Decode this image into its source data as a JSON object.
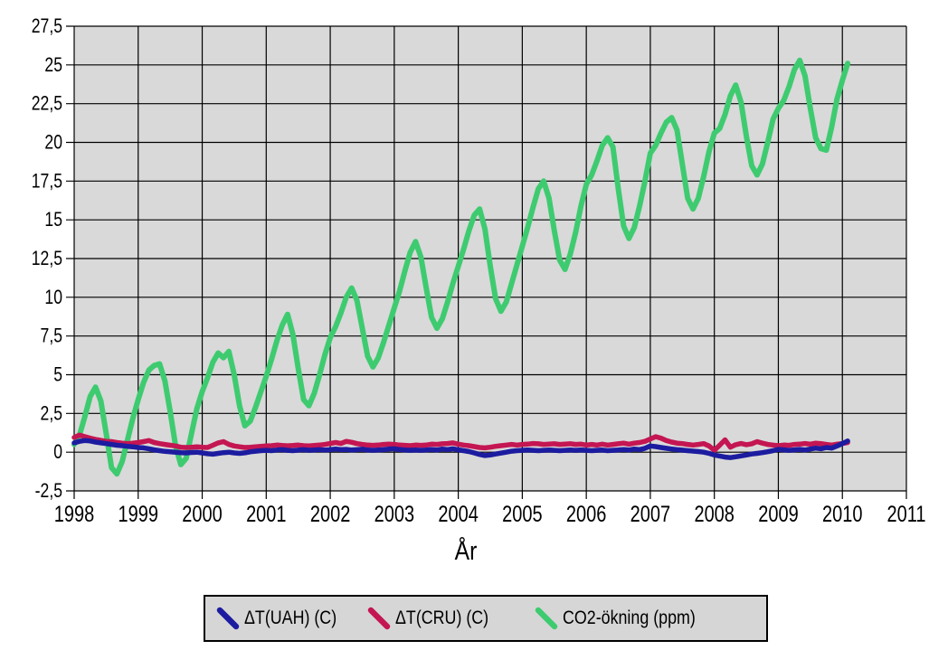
{
  "chart_data": {
    "type": "line",
    "title": "",
    "xlabel": "År",
    "ylabel": "",
    "xlim": [
      1998,
      2011
    ],
    "ylim": [
      -2.5,
      27.5
    ],
    "grid": true,
    "plot_bg": "#d9d9d9",
    "grid_color": "#000000",
    "legend_position": "bottom",
    "x_ticks": [
      1998,
      1999,
      2000,
      2001,
      2002,
      2003,
      2004,
      2005,
      2006,
      2007,
      2008,
      2009,
      2010,
      2011
    ],
    "x_tick_labels": [
      "1998",
      "1999",
      "2000",
      "2001",
      "2002",
      "2003",
      "2004",
      "2005",
      "2006",
      "2007",
      "2008",
      "2009",
      "2010",
      "2011"
    ],
    "y_ticks": [
      -2.5,
      0,
      2.5,
      5,
      7.5,
      10,
      12.5,
      15,
      17.5,
      20,
      22.5,
      25,
      27.5
    ],
    "y_tick_labels": [
      "-2,5",
      "0",
      "2,5",
      "5",
      "7,5",
      "10",
      "12,5",
      "15",
      "17,5",
      "20",
      "22,5",
      "25",
      "27,5"
    ],
    "x_start": 1998,
    "x_step": 0.0833333,
    "series": [
      {
        "name": "ΔT(UAH) (C)",
        "color": "#1c1ca0",
        "width": 5.5,
        "values": [
          0.6,
          0.7,
          0.75,
          0.72,
          0.65,
          0.6,
          0.55,
          0.5,
          0.45,
          0.42,
          0.38,
          0.35,
          0.3,
          0.28,
          0.22,
          0.15,
          0.1,
          0.05,
          0.02,
          0.0,
          -0.03,
          -0.05,
          -0.02,
          0.0,
          -0.05,
          -0.1,
          -0.13,
          -0.08,
          -0.03,
          0.0,
          -0.05,
          -0.08,
          -0.04,
          0.02,
          0.06,
          0.1,
          0.12,
          0.1,
          0.14,
          0.16,
          0.12,
          0.1,
          0.13,
          0.16,
          0.12,
          0.14,
          0.16,
          0.13,
          0.16,
          0.2,
          0.16,
          0.18,
          0.14,
          0.16,
          0.19,
          0.14,
          0.12,
          0.14,
          0.16,
          0.2,
          0.22,
          0.17,
          0.14,
          0.12,
          0.14,
          0.12,
          0.14,
          0.17,
          0.14,
          0.2,
          0.17,
          0.22,
          0.15,
          0.1,
          0.04,
          -0.05,
          -0.15,
          -0.22,
          -0.18,
          -0.12,
          -0.06,
          0.0,
          0.06,
          0.1,
          0.12,
          0.14,
          0.12,
          0.1,
          0.12,
          0.14,
          0.12,
          0.1,
          0.12,
          0.14,
          0.12,
          0.14,
          0.12,
          0.1,
          0.12,
          0.14,
          0.1,
          0.12,
          0.14,
          0.17,
          0.14,
          0.2,
          0.17,
          0.25,
          0.4,
          0.36,
          0.3,
          0.25,
          0.2,
          0.16,
          0.13,
          0.1,
          0.07,
          0.04,
          0.0,
          -0.08,
          -0.18,
          -0.25,
          -0.32,
          -0.35,
          -0.3,
          -0.24,
          -0.18,
          -0.12,
          -0.08,
          -0.03,
          0.03,
          0.1,
          0.18,
          0.15,
          0.12,
          0.15,
          0.18,
          0.14,
          0.2,
          0.26,
          0.22,
          0.3,
          0.26,
          0.4,
          0.55,
          0.72
        ]
      },
      {
        "name": "ΔT(CRU) (C)",
        "color": "#c41652",
        "width": 5.5,
        "values": [
          0.95,
          1.1,
          1.0,
          0.9,
          0.82,
          0.76,
          0.7,
          0.68,
          0.62,
          0.58,
          0.55,
          0.58,
          0.62,
          0.68,
          0.75,
          0.62,
          0.55,
          0.5,
          0.45,
          0.4,
          0.32,
          0.3,
          0.32,
          0.35,
          0.32,
          0.3,
          0.45,
          0.6,
          0.68,
          0.5,
          0.4,
          0.35,
          0.3,
          0.32,
          0.35,
          0.38,
          0.4,
          0.42,
          0.46,
          0.43,
          0.41,
          0.43,
          0.46,
          0.42,
          0.4,
          0.43,
          0.46,
          0.5,
          0.56,
          0.62,
          0.56,
          0.7,
          0.64,
          0.55,
          0.5,
          0.46,
          0.44,
          0.46,
          0.5,
          0.52,
          0.5,
          0.46,
          0.44,
          0.42,
          0.46,
          0.44,
          0.46,
          0.52,
          0.5,
          0.54,
          0.56,
          0.6,
          0.52,
          0.46,
          0.42,
          0.36,
          0.3,
          0.28,
          0.32,
          0.38,
          0.42,
          0.46,
          0.5,
          0.46,
          0.5,
          0.52,
          0.56,
          0.54,
          0.5,
          0.52,
          0.54,
          0.5,
          0.52,
          0.54,
          0.5,
          0.52,
          0.46,
          0.5,
          0.46,
          0.52,
          0.46,
          0.5,
          0.54,
          0.58,
          0.52,
          0.58,
          0.62,
          0.7,
          0.85,
          1.0,
          0.9,
          0.75,
          0.65,
          0.58,
          0.55,
          0.5,
          0.46,
          0.5,
          0.55,
          0.4,
          0.12,
          0.45,
          0.8,
          0.32,
          0.48,
          0.56,
          0.48,
          0.54,
          0.68,
          0.58,
          0.5,
          0.46,
          0.42,
          0.46,
          0.44,
          0.5,
          0.52,
          0.56,
          0.52,
          0.58,
          0.55,
          0.5,
          0.46,
          0.52,
          0.56,
          0.62
        ]
      },
      {
        "name": "CO2-ökning (ppm)",
        "color": "#3ecb70",
        "width": 6,
        "values": [
          0.5,
          1.1,
          2.3,
          3.6,
          4.2,
          3.3,
          1.2,
          -1.0,
          -1.4,
          -0.6,
          0.8,
          2.2,
          3.4,
          4.5,
          5.3,
          5.6,
          5.7,
          4.6,
          2.6,
          0.4,
          -0.8,
          -0.4,
          1.2,
          2.8,
          3.9,
          4.8,
          5.8,
          6.4,
          6.1,
          6.5,
          5.0,
          3.0,
          1.7,
          2.0,
          2.9,
          3.9,
          4.9,
          6.0,
          7.2,
          8.2,
          8.9,
          7.6,
          5.4,
          3.4,
          3.0,
          3.8,
          5.0,
          6.3,
          7.4,
          8.1,
          9.0,
          10.0,
          10.6,
          9.8,
          8.0,
          6.2,
          5.5,
          6.1,
          7.1,
          8.2,
          9.3,
          10.4,
          11.7,
          12.9,
          13.6,
          12.6,
          10.6,
          8.7,
          8.0,
          8.6,
          9.7,
          10.9,
          12.0,
          13.1,
          14.3,
          15.3,
          15.7,
          14.4,
          12.0,
          9.9,
          9.1,
          9.7,
          10.9,
          12.1,
          13.3,
          14.5,
          15.8,
          17.0,
          17.5,
          16.4,
          14.3,
          12.4,
          11.8,
          12.8,
          14.2,
          15.9,
          17.3,
          17.9,
          18.8,
          19.8,
          20.3,
          19.7,
          17.0,
          14.6,
          13.8,
          14.5,
          15.9,
          17.5,
          19.3,
          19.8,
          20.6,
          21.3,
          21.6,
          20.8,
          18.6,
          16.4,
          15.7,
          16.4,
          17.8,
          19.4,
          20.6,
          20.9,
          21.8,
          23.0,
          23.7,
          22.6,
          20.4,
          18.5,
          17.9,
          18.6,
          20.0,
          21.5,
          22.2,
          22.7,
          23.6,
          24.7,
          25.3,
          24.3,
          22.2,
          20.3,
          19.6,
          19.5,
          21.0,
          22.8,
          24.0,
          25.1
        ]
      }
    ]
  }
}
